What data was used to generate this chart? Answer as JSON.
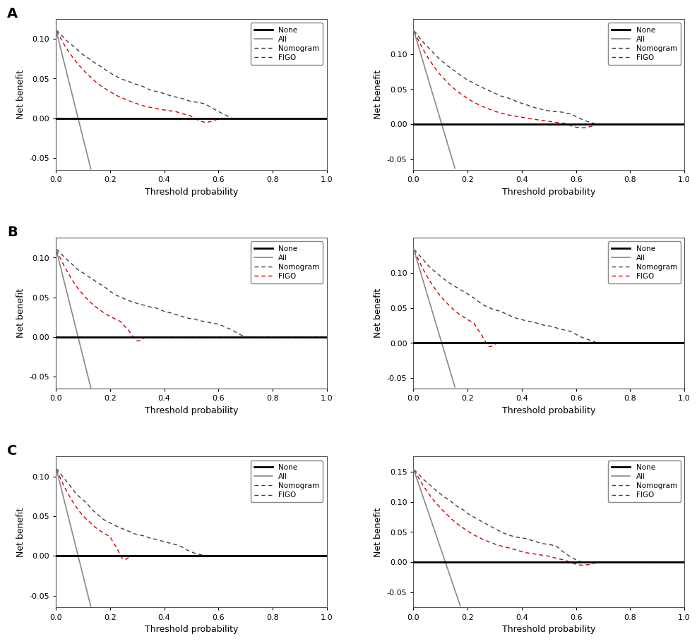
{
  "colors": {
    "none": "#000000",
    "all": "#888888",
    "nomogram": "#404040",
    "figo": "#cc0000"
  },
  "legend_labels": [
    "None",
    "All",
    "Nomogram",
    "FIGO"
  ],
  "xlabel": "Threshold probability",
  "ylabel": "Net benefit",
  "panel_configs": [
    {
      "seed": 10,
      "nom_decay": 3.5,
      "figo_decay": 6.0,
      "peak": 0.112,
      "all_cutoff": 0.13,
      "ylim": [
        -0.065,
        0.125
      ],
      "yticks": [
        -0.05,
        0.0,
        0.05,
        0.1
      ],
      "label": "A",
      "show_label": true,
      "col": 0,
      "row": 0,
      "nom_noise": 1.0,
      "figo_noise": 0.8,
      "nom_zero": 0.65,
      "figo_zero": 0.55
    },
    {
      "seed": 11,
      "nom_decay": 3.8,
      "figo_decay": 6.5,
      "peak": 0.135,
      "all_cutoff": 0.155,
      "ylim": [
        -0.065,
        0.15
      ],
      "yticks": [
        -0.05,
        0.0,
        0.05,
        0.1
      ],
      "label": "A",
      "show_label": false,
      "col": 1,
      "row": 0,
      "nom_noise": 0.9,
      "figo_noise": 0.7,
      "nom_zero": 0.68,
      "figo_zero": 0.62
    },
    {
      "seed": 20,
      "nom_decay": 3.2,
      "figo_decay": 7.5,
      "peak": 0.112,
      "all_cutoff": 0.13,
      "ylim": [
        -0.065,
        0.125
      ],
      "yticks": [
        -0.05,
        0.0,
        0.05,
        0.1
      ],
      "label": "B",
      "show_label": true,
      "col": 0,
      "row": 1,
      "nom_noise": 1.2,
      "figo_noise": 0.9,
      "nom_zero": 0.7,
      "figo_zero": 0.3
    },
    {
      "seed": 21,
      "nom_decay": 3.5,
      "figo_decay": 7.0,
      "peak": 0.135,
      "all_cutoff": 0.155,
      "ylim": [
        -0.065,
        0.15
      ],
      "yticks": [
        -0.05,
        0.0,
        0.05,
        0.1
      ],
      "label": "B",
      "show_label": false,
      "col": 1,
      "row": 1,
      "nom_noise": 1.1,
      "figo_noise": 0.8,
      "nom_zero": 0.68,
      "figo_zero": 0.28
    },
    {
      "seed": 30,
      "nom_decay": 4.5,
      "figo_decay": 8.0,
      "peak": 0.112,
      "all_cutoff": 0.13,
      "ylim": [
        -0.065,
        0.125
      ],
      "yticks": [
        -0.05,
        0.0,
        0.05,
        0.1
      ],
      "label": "C",
      "show_label": true,
      "col": 0,
      "row": 2,
      "nom_noise": 1.5,
      "figo_noise": 1.0,
      "nom_zero": 0.55,
      "figo_zero": 0.25
    },
    {
      "seed": 31,
      "nom_decay": 3.0,
      "figo_decay": 5.5,
      "peak": 0.155,
      "all_cutoff": 0.175,
      "ylim": [
        -0.075,
        0.175
      ],
      "yticks": [
        -0.05,
        0.0,
        0.05,
        0.1,
        0.15
      ],
      "label": "C",
      "show_label": false,
      "col": 1,
      "row": 2,
      "nom_noise": 1.3,
      "figo_noise": 1.0,
      "nom_zero": 0.62,
      "figo_zero": 0.62
    }
  ]
}
